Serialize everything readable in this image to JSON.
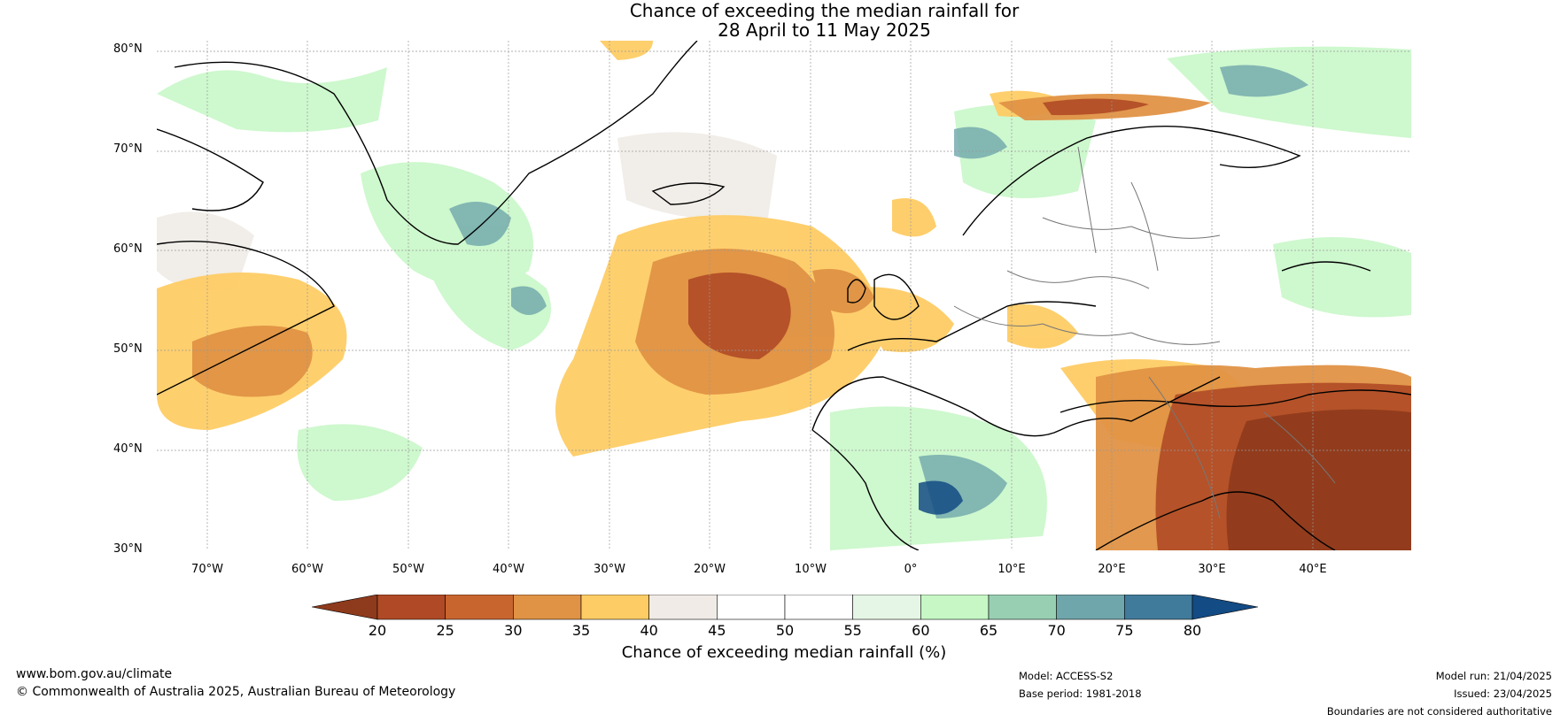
{
  "title": {
    "line1": "Chance of exceeding the median rainfall for",
    "line2": "28 April to 11 May 2025"
  },
  "axes": {
    "lat_labels": [
      "80°N",
      "70°N",
      "60°N",
      "50°N",
      "40°N",
      "30°N"
    ],
    "lon_labels": [
      "70°W",
      "60°W",
      "50°W",
      "40°W",
      "30°W",
      "20°W",
      "10°W",
      "0°",
      "10°E",
      "20°E",
      "30°E",
      "40°E"
    ]
  },
  "colorbar": {
    "ticks": [
      "20",
      "25",
      "30",
      "35",
      "40",
      "45",
      "50",
      "55",
      "60",
      "65",
      "70",
      "75",
      "80"
    ],
    "colors": [
      "#8e3a1c",
      "#b04a26",
      "#c8652f",
      "#e09245",
      "#fecc65",
      "#f0ebe6",
      "#ffffff",
      "#ffffff",
      "#e6f6e6",
      "#c6f7c5",
      "#98cfb3",
      "#6fa6ab",
      "#417b9b",
      "#134b84"
    ],
    "label": "Chance of exceeding median rainfall (%)"
  },
  "footer": {
    "website": "www.bom.gov.au/climate",
    "copyright": "© Commonwealth of Australia 2025, Australian Bureau of Meteorology",
    "model": "Model: ACCESS-S2",
    "base_period": "Base period: 1981-2018",
    "model_run": "Model run: 21/04/2025",
    "issued": "Issued: 23/04/2025",
    "disclaimer": "Boundaries are not considered authoritative"
  }
}
